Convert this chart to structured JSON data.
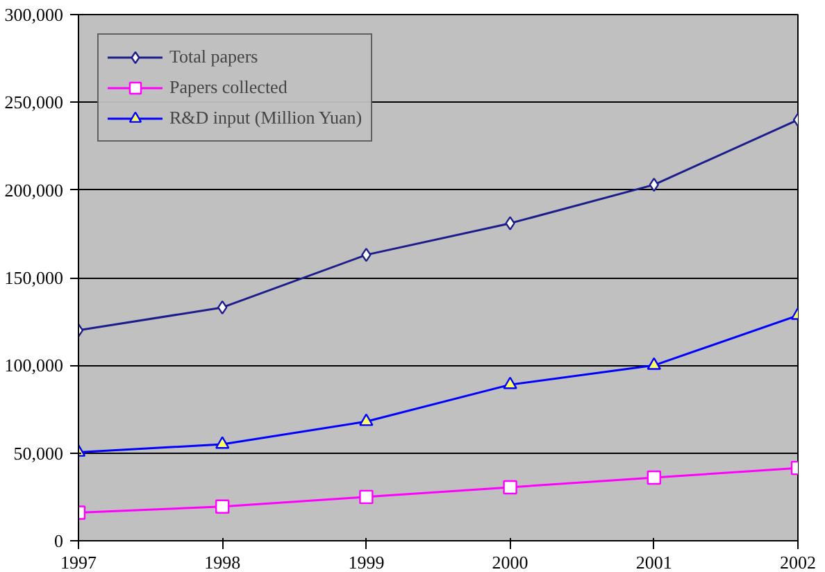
{
  "chart_data": {
    "type": "line",
    "x": [
      1997,
      1998,
      1999,
      2000,
      2001,
      2002
    ],
    "series": [
      {
        "name": "Total papers",
        "color": "#1c1c8c",
        "marker": "diamond",
        "values": [
          120000,
          133000,
          163000,
          181000,
          203000,
          240000
        ]
      },
      {
        "name": "Papers collected",
        "color": "#ff00ff",
        "marker": "square",
        "values": [
          16000,
          19500,
          25000,
          30500,
          36000,
          41500
        ]
      },
      {
        "name": "R&D input (Million Yuan)",
        "color": "#0000ff",
        "marker": "triangle",
        "values": [
          50500,
          55000,
          68000,
          89000,
          100000,
          128500
        ]
      }
    ],
    "xlim": [
      1997,
      2002
    ],
    "xticks": [
      1997,
      1998,
      1999,
      2000,
      2001,
      2002
    ],
    "ylim": [
      0,
      300000
    ],
    "yticks": [
      {
        "value": 0,
        "label": "0"
      },
      {
        "value": 50000,
        "label": "50,000"
      },
      {
        "value": 100000,
        "label": "100,000"
      },
      {
        "value": 150000,
        "label": "150,000"
      },
      {
        "value": 200000,
        "label": "200,000"
      },
      {
        "value": 250000,
        "label": "250,000"
      },
      {
        "value": 300000,
        "label": "300,000"
      }
    ],
    "grid": "y",
    "legend": "top left",
    "line_style": "solid"
  }
}
